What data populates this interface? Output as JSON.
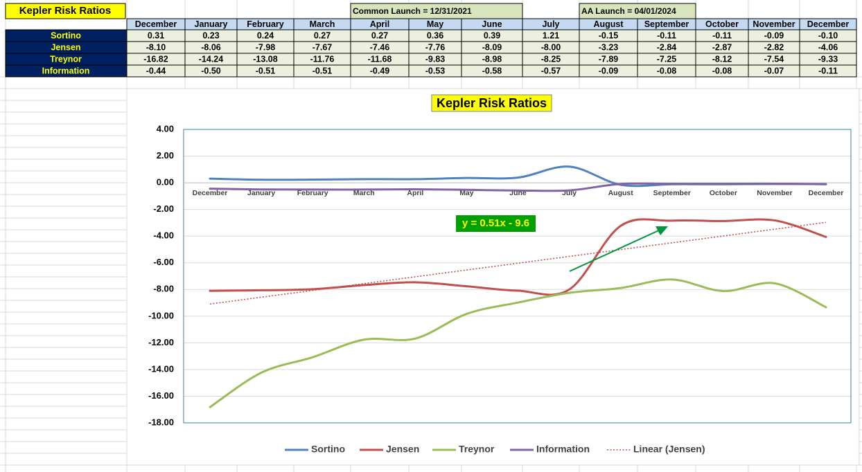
{
  "table": {
    "title": "Kepler Risk Ratios",
    "notes": [
      "Common Launch = 12/31/2021",
      "AA Launch = 04/01/2024"
    ],
    "columns": [
      "December",
      "January",
      "February",
      "March",
      "April",
      "May",
      "June",
      "July",
      "August",
      "September",
      "October",
      "November",
      "December"
    ],
    "rows": [
      {
        "label": "Sortino",
        "cells": [
          "0.31",
          "0.23",
          "0.24",
          "0.27",
          "0.27",
          "0.36",
          "0.39",
          "1.21",
          "-0.15",
          "-0.11",
          "-0.11",
          "-0.09",
          "-0.10"
        ]
      },
      {
        "label": "Jensen",
        "cells": [
          "-8.10",
          "-8.06",
          "-7.98",
          "-7.67",
          "-7.46",
          "-7.76",
          "-8.09",
          "-8.00",
          "-3.23",
          "-2.84",
          "-2.87",
          "-2.82",
          "-4.06"
        ]
      },
      {
        "label": "Treynor",
        "cells": [
          "-16.82",
          "-14.24",
          "-13.08",
          "-11.76",
          "-11.68",
          "-9.83",
          "-8.98",
          "-8.25",
          "-7.89",
          "-7.25",
          "-8.12",
          "-7.54",
          "-9.33"
        ]
      },
      {
        "label": "Information",
        "cells": [
          "-0.44",
          "-0.50",
          "-0.51",
          "-0.51",
          "-0.49",
          "-0.53",
          "-0.58",
          "-0.57",
          "-0.09",
          "-0.08",
          "-0.08",
          "-0.07",
          "-0.11"
        ]
      }
    ]
  },
  "chart_data": {
    "type": "line",
    "title": "Kepler Risk Ratios",
    "categories": [
      "December",
      "January",
      "February",
      "March",
      "April",
      "May",
      "June",
      "July",
      "August",
      "September",
      "October",
      "November",
      "December"
    ],
    "series": [
      {
        "name": "Sortino",
        "color": "#4f81bd",
        "values": [
          0.31,
          0.23,
          0.24,
          0.27,
          0.27,
          0.36,
          0.39,
          1.21,
          -0.15,
          -0.11,
          -0.11,
          -0.09,
          -0.1
        ]
      },
      {
        "name": "Jensen",
        "color": "#c0504d",
        "values": [
          -8.1,
          -8.06,
          -7.98,
          -7.67,
          -7.46,
          -7.76,
          -8.09,
          -8.0,
          -3.23,
          -2.84,
          -2.87,
          -2.82,
          -4.06
        ]
      },
      {
        "name": "Treynor",
        "color": "#9bbb59",
        "values": [
          -16.82,
          -14.24,
          -13.08,
          -11.76,
          -11.68,
          -9.83,
          -8.98,
          -8.25,
          -7.89,
          -7.25,
          -8.12,
          -7.54,
          -9.33
        ]
      },
      {
        "name": "Information",
        "color": "#8064a2",
        "values": [
          -0.44,
          -0.5,
          -0.51,
          -0.51,
          -0.49,
          -0.53,
          -0.58,
          -0.57,
          -0.09,
          -0.08,
          -0.08,
          -0.07,
          -0.11
        ]
      }
    ],
    "trendline": {
      "name": "Linear (Jensen)",
      "color": "#c0504d",
      "slope": 0.51,
      "intercept": -9.6,
      "label": "y = 0.51x - 9.6"
    },
    "ylim": [
      -18,
      4
    ],
    "yticks": [
      {
        "value": 4,
        "label": "4.00"
      },
      {
        "value": 2,
        "label": "2.00"
      },
      {
        "value": 0,
        "label": "0.00"
      },
      {
        "value": -2,
        "label": "-2.00"
      },
      {
        "value": -4,
        "label": "-4.00"
      },
      {
        "value": -6,
        "label": "-6.00"
      },
      {
        "value": -8,
        "label": "-8.00"
      },
      {
        "value": -10,
        "label": "-10.00"
      },
      {
        "value": -12,
        "label": "-12.00"
      },
      {
        "value": -14,
        "label": "-14.00"
      },
      {
        "value": -16,
        "label": "-16.00"
      },
      {
        "value": -18,
        "label": "-18.00"
      }
    ],
    "grid": true,
    "smooth": true,
    "legend": "bottom"
  }
}
